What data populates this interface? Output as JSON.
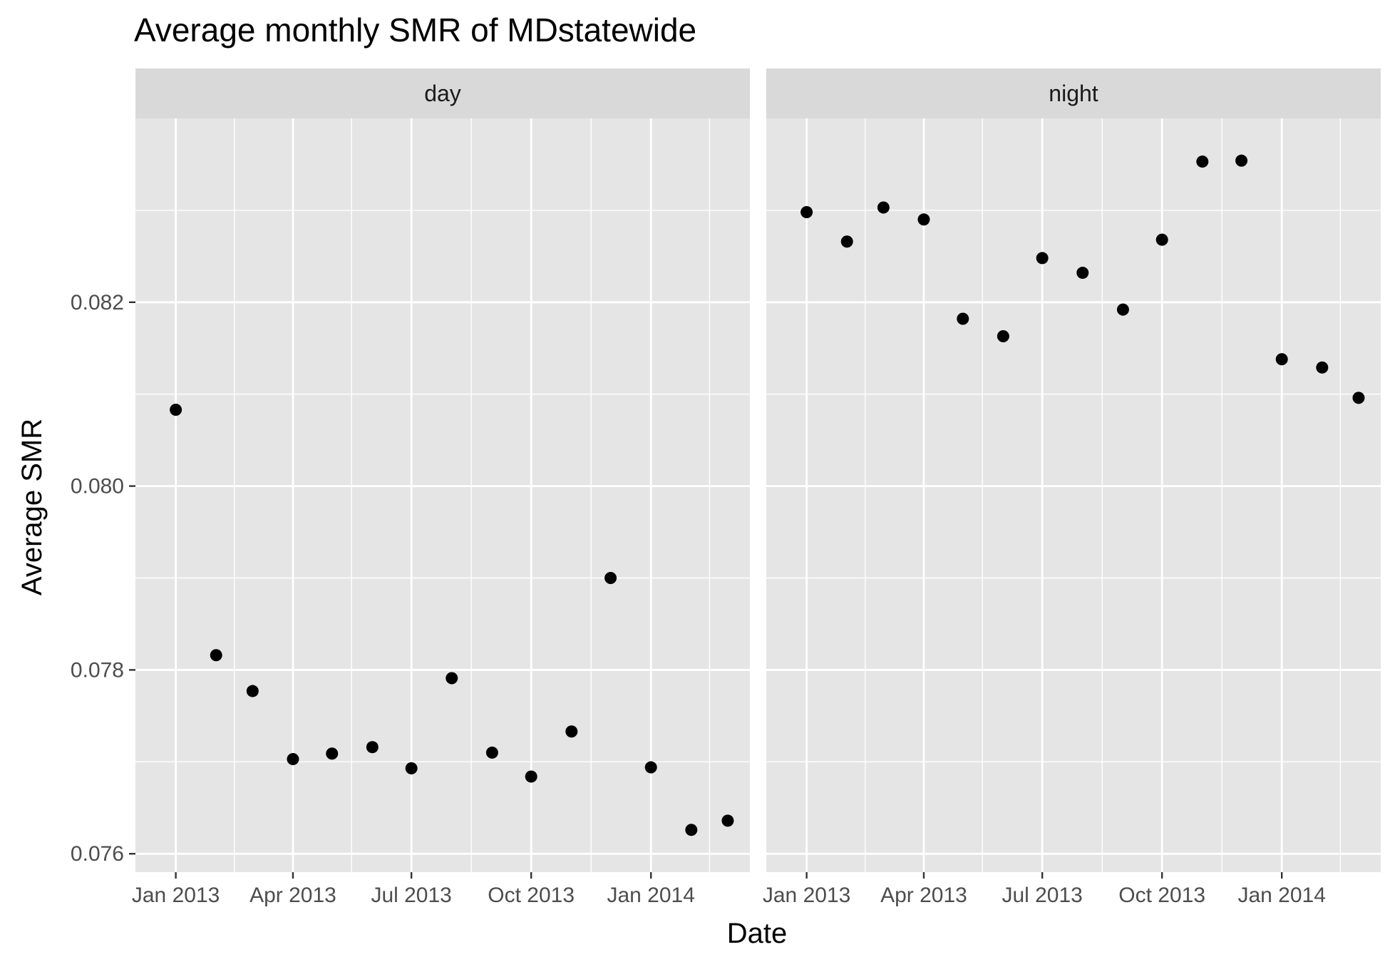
{
  "chart_data": {
    "type": "scatter",
    "title": "Average monthly SMR of MDstatewide",
    "xlabel": "Date",
    "ylabel": "Average SMR",
    "ylim": [
      0.0758,
      0.084
    ],
    "xlim": [
      "2012-12-01",
      "2014-03-18"
    ],
    "y_ticks": [
      0.076,
      0.078,
      0.08,
      0.082
    ],
    "y_tick_labels": [
      "0.076",
      "0.078",
      "0.080",
      "0.082"
    ],
    "x_ticks": [
      "2013-01-01",
      "2013-04-01",
      "2013-07-01",
      "2013-10-01",
      "2014-01-01"
    ],
    "x_tick_labels": [
      "Jan 2013",
      "Apr 2013",
      "Jul 2013",
      "Oct 2013",
      "Jan 2014"
    ],
    "grid": true,
    "facets": [
      "day",
      "night"
    ],
    "series": [
      {
        "facet": "day",
        "x": [
          "2013-01-01",
          "2013-02-01",
          "2013-03-01",
          "2013-04-01",
          "2013-05-01",
          "2013-06-01",
          "2013-07-01",
          "2013-08-01",
          "2013-09-01",
          "2013-10-01",
          "2013-11-01",
          "2013-12-01",
          "2014-01-01",
          "2014-02-01",
          "2014-03-01"
        ],
        "y": [
          0.08083,
          0.07816,
          0.07777,
          0.07703,
          0.07709,
          0.07716,
          0.07693,
          0.07791,
          0.0771,
          0.07684,
          0.07733,
          0.079,
          0.07694,
          0.07626,
          0.07636
        ]
      },
      {
        "facet": "night",
        "x": [
          "2013-01-01",
          "2013-02-01",
          "2013-03-01",
          "2013-04-01",
          "2013-05-01",
          "2013-06-01",
          "2013-07-01",
          "2013-08-01",
          "2013-09-01",
          "2013-10-01",
          "2013-11-01",
          "2013-12-01",
          "2014-01-01",
          "2014-02-01",
          "2014-03-01"
        ],
        "y": [
          0.08298,
          0.08266,
          0.08303,
          0.0829,
          0.08182,
          0.08163,
          0.08248,
          0.08232,
          0.08192,
          0.08268,
          0.08353,
          0.08354,
          0.08138,
          0.08129,
          0.08096
        ]
      }
    ],
    "colors": {
      "panel_background": "#e5e5e5",
      "strip_background": "#d9d9d9",
      "grid_line": "#ffffff",
      "point": "#000000",
      "tick_text": "#4d4d4d",
      "tick_mark": "#333333"
    }
  }
}
